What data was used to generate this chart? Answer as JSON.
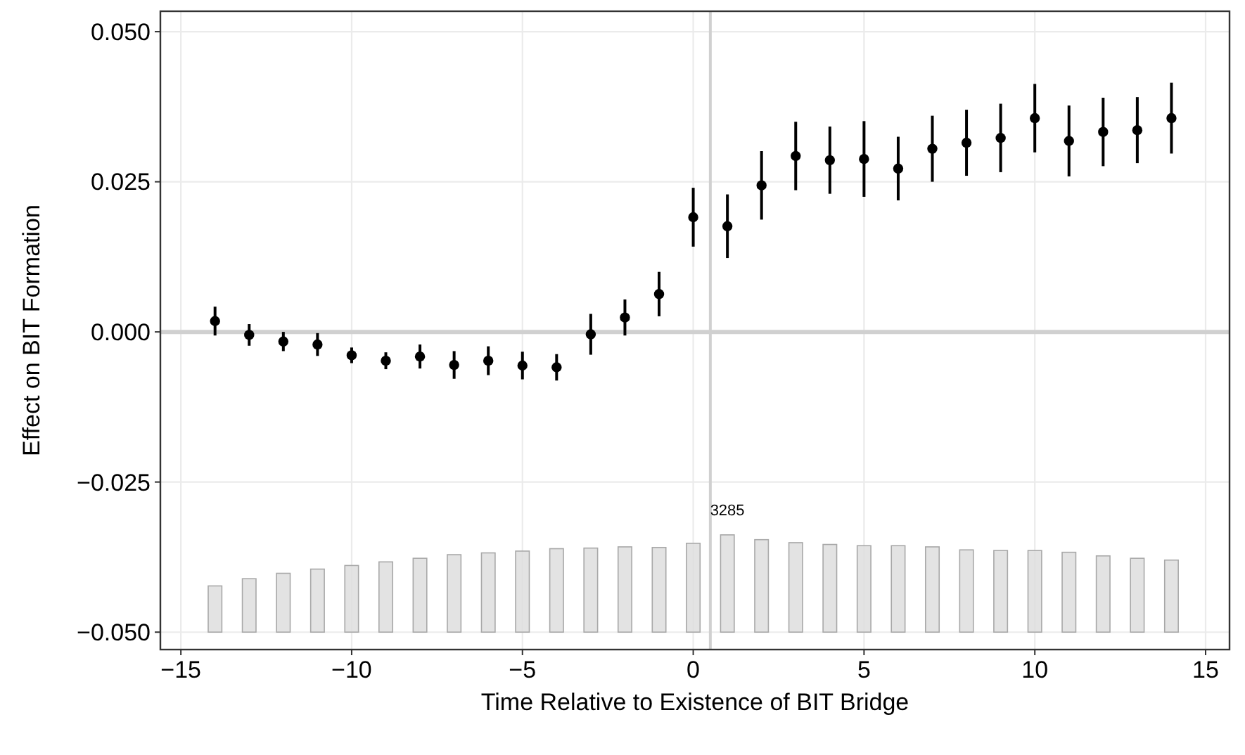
{
  "chart_data": {
    "type": "scatter",
    "xlabel": "Time Relative to Existence of BIT Bridge",
    "ylabel": "Effect on BIT Formation",
    "x": [
      -14,
      -13,
      -12,
      -11,
      -10,
      -9,
      -8,
      -7,
      -6,
      -5,
      -4,
      -3,
      -2,
      -1,
      0,
      1,
      2,
      3,
      4,
      5,
      6,
      7,
      8,
      9,
      10,
      11,
      12,
      13,
      14
    ],
    "xlim": [
      -15.6,
      15.7
    ],
    "xticks": [
      {
        "value": -15,
        "label": "−15"
      },
      {
        "value": -10,
        "label": "−10"
      },
      {
        "value": -5,
        "label": "−5"
      },
      0,
      5,
      10,
      15
    ],
    "ylim": [
      -0.0529,
      0.0534
    ],
    "yticks": [
      {
        "value": -0.05,
        "label": "−0.050"
      },
      {
        "value": -0.025,
        "label": "−0.025"
      },
      {
        "value": 0,
        "label": "0.000"
      },
      {
        "value": 0.025,
        "label": "0.025"
      },
      {
        "value": 0.05,
        "label": "0.050"
      }
    ],
    "annotations": [
      {
        "text": "3285",
        "x": 1,
        "y": -0.0338
      }
    ],
    "grid": true,
    "marker": "circle",
    "ref_lines": [
      {
        "axis": "y",
        "value": 0,
        "color": "#d0d0d0"
      },
      {
        "axis": "x",
        "value": 0.5,
        "color": "#d0d0d0"
      }
    ],
    "series": [
      {
        "type": "bar",
        "color": "#dedede",
        "base": [
          -0.05,
          -0.05,
          -0.05,
          -0.05,
          -0.05,
          -0.05,
          -0.05,
          -0.05,
          -0.05,
          -0.05,
          -0.05,
          -0.05,
          -0.05,
          -0.05,
          -0.05,
          -0.05,
          -0.05,
          -0.05,
          -0.05,
          -0.05,
          -0.05,
          -0.05,
          -0.05,
          -0.05,
          -0.05,
          -0.05,
          -0.05,
          -0.05,
          -0.05
        ],
        "values": [
          0.0077,
          0.0089,
          0.0098,
          0.0105,
          0.0111,
          0.0117,
          0.0123,
          0.0129,
          0.0132,
          0.0135,
          0.0139,
          0.014,
          0.0142,
          0.0141,
          0.0148,
          0.0162,
          0.0154,
          0.0149,
          0.0146,
          0.0144,
          0.0144,
          0.0142,
          0.0137,
          0.0136,
          0.0136,
          0.0133,
          0.0127,
          0.0123,
          0.012
        ]
      },
      {
        "color": "#000000",
        "values": [
          0.0018,
          -0.0005,
          -0.0016,
          -0.0021,
          -0.0039,
          -0.0048,
          -0.0041,
          -0.0055,
          -0.0048,
          -0.0056,
          -0.0059,
          -0.0004,
          0.0024,
          0.0063,
          0.0191,
          0.0176,
          0.0244,
          0.0293,
          0.0286,
          0.0288,
          0.0272,
          0.0305,
          0.0315,
          0.0323,
          0.0356,
          0.0318,
          0.0333,
          0.0336,
          0.0356
        ],
        "errors": [
          0.0024,
          0.0018,
          0.0016,
          0.0019,
          0.0013,
          0.0014,
          0.002,
          0.0023,
          0.0024,
          0.0023,
          0.0022,
          0.0034,
          0.003,
          0.0037,
          0.0049,
          0.0053,
          0.0057,
          0.0057,
          0.0056,
          0.0063,
          0.0053,
          0.0055,
          0.0055,
          0.0057,
          0.0057,
          0.0059,
          0.0057,
          0.0055,
          0.0059
        ]
      }
    ]
  }
}
